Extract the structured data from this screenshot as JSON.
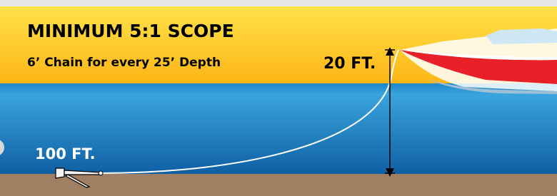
{
  "header": {
    "title": "MINIMUM 5:1 SCOPE",
    "subtitle": "6’ Chain for every 25’ Depth"
  },
  "labels": {
    "depth": "20 FT.",
    "rode": "100 FT."
  }
}
